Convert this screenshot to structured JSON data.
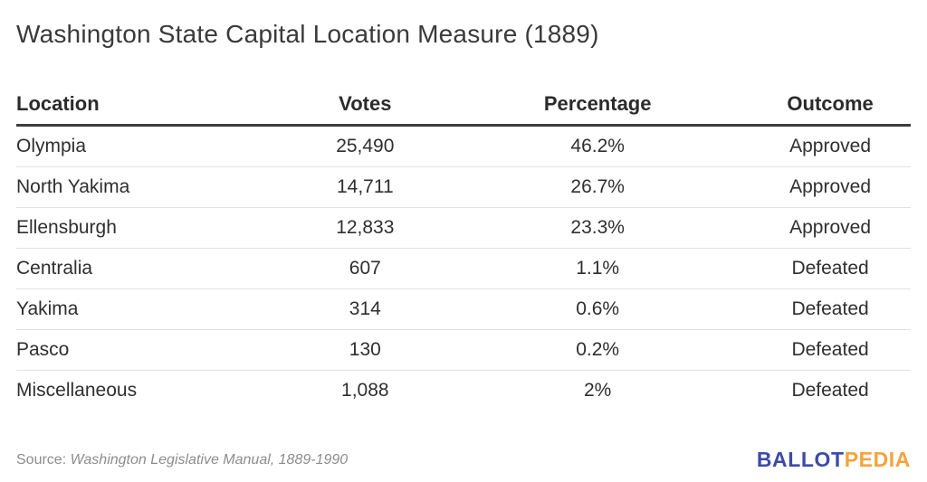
{
  "title": "Washington State Capital Location Measure (1889)",
  "table": {
    "columns": [
      "Location",
      "Votes",
      "Percentage",
      "Outcome"
    ],
    "rows": [
      {
        "location": "Olympia",
        "votes": "25,490",
        "percentage": "46.2%",
        "outcome": "Approved"
      },
      {
        "location": "North Yakima",
        "votes": "14,711",
        "percentage": "26.7%",
        "outcome": "Approved"
      },
      {
        "location": "Ellensburgh",
        "votes": "12,833",
        "percentage": "23.3%",
        "outcome": "Approved"
      },
      {
        "location": "Centralia",
        "votes": "607",
        "percentage": "1.1%",
        "outcome": "Defeated"
      },
      {
        "location": "Yakima",
        "votes": "314",
        "percentage": "0.6%",
        "outcome": "Defeated"
      },
      {
        "location": "Pasco",
        "votes": "130",
        "percentage": "0.2%",
        "outcome": "Defeated"
      },
      {
        "location": "Miscellaneous",
        "votes": "1,088",
        "percentage": "2%",
        "outcome": "Defeated"
      }
    ]
  },
  "footer": {
    "source_prefix": "Source:",
    "source_title": "Washington Legislative Manual, 1889-1990",
    "logo": {
      "text_blue": "BALLOT",
      "text_orange": "PEDIA",
      "blue_color": "#3b4ba7",
      "orange_color": "#f5a33c"
    }
  },
  "colors": {
    "background": "#ffffff",
    "title_text": "#3a3a3a",
    "header_text": "#2b2b2b",
    "body_text": "#2f2f2f",
    "header_rule": "#3d3d3d",
    "row_rule": "#e2e2e2",
    "source_text": "#8d8d8d"
  },
  "chart_data": {
    "type": "table",
    "title": "Washington State Capital Location Measure (1889)",
    "columns": [
      "Location",
      "Votes",
      "Percentage",
      "Outcome"
    ],
    "rows": [
      [
        "Olympia",
        25490,
        "46.2%",
        "Approved"
      ],
      [
        "North Yakima",
        14711,
        "26.7%",
        "Approved"
      ],
      [
        "Ellensburgh",
        12833,
        "23.3%",
        "Approved"
      ],
      [
        "Centralia",
        607,
        "1.1%",
        "Defeated"
      ],
      [
        "Yakima",
        314,
        "0.6%",
        "Defeated"
      ],
      [
        "Pasco",
        130,
        "0.2%",
        "Defeated"
      ],
      [
        "Miscellaneous",
        1088,
        "2%",
        "Defeated"
      ]
    ],
    "source": "Source: Washington Legislative Manual, 1889-1990"
  }
}
